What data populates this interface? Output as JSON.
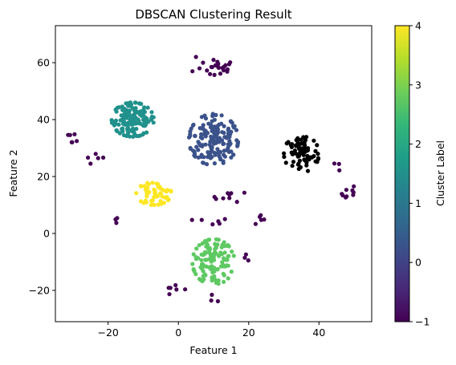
{
  "chart_data": {
    "type": "scatter",
    "title": "DBSCAN Clustering Result",
    "xlabel": "Feature 1",
    "ylabel": "Feature 2",
    "xlim": [
      -35,
      55
    ],
    "ylim": [
      -31,
      73
    ],
    "xticks": [
      -20,
      0,
      20,
      40
    ],
    "yticks": [
      -20,
      0,
      20,
      40,
      60
    ],
    "grid": false,
    "colormap": "viridis",
    "colorbar": {
      "label": "Cluster Label",
      "range": [
        -1,
        4
      ],
      "ticks": [
        -1,
        0,
        1,
        2,
        3,
        4
      ],
      "colors": [
        "#440154",
        "#3b528b",
        "#21918c",
        "#5ec962",
        "#fde725"
      ]
    },
    "clusters": [
      {
        "label": -1,
        "center": [
          12,
          58
        ],
        "spread": [
          4,
          3
        ],
        "n": 18,
        "points": [
          [
            7,
            60
          ],
          [
            10,
            61
          ],
          [
            4,
            57
          ],
          [
            5,
            62
          ],
          [
            9,
            56
          ],
          [
            6,
            58
          ]
        ]
      },
      {
        "label": -1,
        "center": [
          -30,
          35
        ],
        "spread": [
          2,
          3
        ],
        "n": 6
      },
      {
        "label": -1,
        "center": [
          -23,
          26
        ],
        "spread": [
          3,
          2
        ],
        "n": 5
      },
      {
        "label": -1,
        "center": [
          49,
          14
        ],
        "spread": [
          2.5,
          3
        ],
        "n": 9
      },
      {
        "label": -1,
        "center": [
          45,
          23
        ],
        "spread": [
          1,
          2
        ],
        "n": 3
      },
      {
        "label": -1,
        "center": [
          15,
          13
        ],
        "spread": [
          5,
          2
        ],
        "n": 9
      },
      {
        "label": -1,
        "center": [
          -17,
          5
        ],
        "spread": [
          2,
          2
        ],
        "n": 3
      },
      {
        "label": -1,
        "center": [
          9,
          4
        ],
        "spread": [
          6,
          1.5
        ],
        "n": 6
      },
      {
        "label": -1,
        "center": [
          22,
          5
        ],
        "spread": [
          3,
          2
        ],
        "n": 5
      },
      {
        "label": -1,
        "center": [
          -1,
          -20
        ],
        "spread": [
          3,
          2
        ],
        "n": 6
      },
      {
        "label": -1,
        "center": [
          10,
          -23
        ],
        "spread": [
          2,
          1.5
        ],
        "n": 3
      },
      {
        "label": -1,
        "center": [
          19,
          -8
        ],
        "spread": [
          2,
          2
        ],
        "n": 3
      },
      {
        "label": 0,
        "center": [
          10,
          33
        ],
        "spread": [
          7,
          9
        ],
        "n": 170
      },
      {
        "label": 1,
        "center": [
          -13,
          40
        ],
        "spread": [
          6,
          6
        ],
        "n": 140
      },
      {
        "label": 2,
        "center": [
          10,
          -10
        ],
        "spread": [
          6,
          8
        ],
        "n": 120
      },
      {
        "label": 3,
        "center": [
          -7,
          14
        ],
        "spread": [
          5,
          4
        ],
        "n": 60
      },
      {
        "label": 4,
        "center": [
          35,
          28
        ],
        "spread": [
          5,
          6.5
        ],
        "n": 80
      }
    ]
  }
}
